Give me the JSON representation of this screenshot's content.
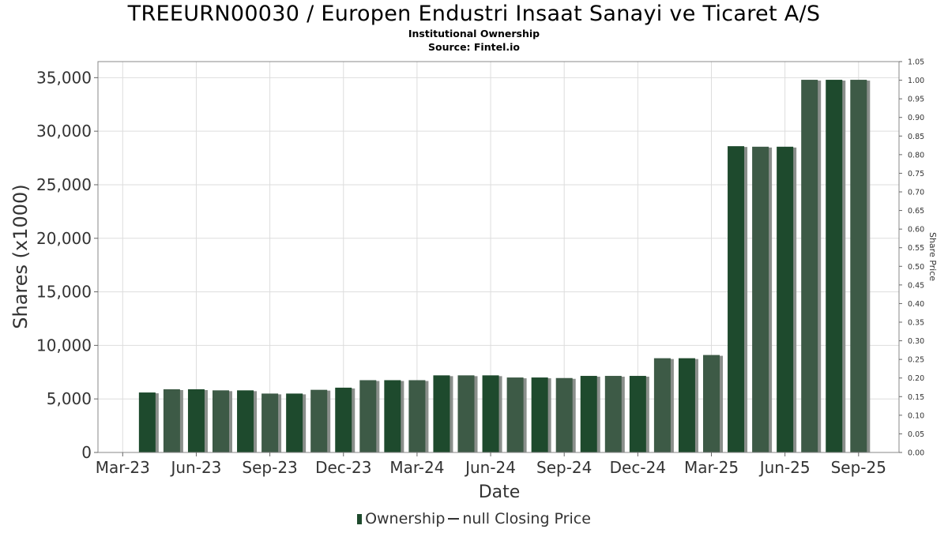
{
  "title": "TREEURN00030 / Europen Endustri Insaat Sanayi ve Ticaret A/S",
  "subtitle1": "Institutional Ownership",
  "subtitle2": "Source: Fintel.io",
  "colors": {
    "bar": "#1e4a2d",
    "bar_light": "#3d5a46",
    "shadow": "#8a8f8b",
    "grid": "#dddddd"
  },
  "legend": {
    "ownership": "Ownership",
    "price": "null Closing Price"
  },
  "chart_data": {
    "type": "bar",
    "title": "TREEURN00030 / Europen Endustri Insaat Sanayi ve Ticaret A/S",
    "xlabel": "Date",
    "ylabel": "Shares (x1000)",
    "y2label": "Share Price",
    "ylim": [
      0,
      36500
    ],
    "y2lim": [
      0,
      1.05
    ],
    "yticks": [
      "0",
      "5,000",
      "10,000",
      "15,000",
      "20,000",
      "25,000",
      "30,000",
      "35,000"
    ],
    "y2ticks": [
      "0.00",
      "0.05",
      "0.10",
      "0.15",
      "0.20",
      "0.25",
      "0.30",
      "0.35",
      "0.40",
      "0.45",
      "0.50",
      "0.55",
      "0.60",
      "0.65",
      "0.70",
      "0.75",
      "0.80",
      "0.85",
      "0.90",
      "0.95",
      "1.00",
      "1.05"
    ],
    "xticks": [
      "Mar-23",
      "Jun-23",
      "Sep-23",
      "Dec-23",
      "Mar-24",
      "Jun-24",
      "Sep-24",
      "Dec-24",
      "Mar-25",
      "Jun-25",
      "Sep-25"
    ],
    "grid": true,
    "legend_position": "bottom",
    "series": [
      {
        "name": "Ownership",
        "values": [
          5600,
          5900,
          5900,
          5800,
          5800,
          5500,
          5500,
          5850,
          6050,
          6750,
          6750,
          6750,
          7200,
          7200,
          7200,
          7000,
          7000,
          6950,
          7150,
          7150,
          7150,
          8800,
          8800,
          9100,
          28600,
          28550,
          28550,
          34800,
          34800,
          34800
        ]
      }
    ]
  }
}
